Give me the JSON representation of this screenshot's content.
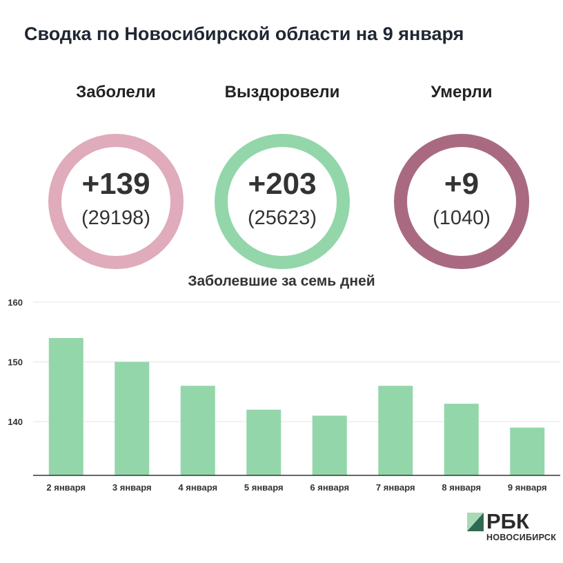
{
  "title": "Сводка по Новосибирской области на 9 января",
  "stats": [
    {
      "label": "Заболели",
      "delta": "+139",
      "total": "(29198)",
      "color": "#e0abbb"
    },
    {
      "label": "Выздоровели",
      "delta": "+203",
      "total": "(25623)",
      "color": "#93d6aa"
    },
    {
      "label": "Умерли",
      "delta": "+9",
      "total": "(1040)",
      "color": "#a96a81"
    }
  ],
  "chart_data": {
    "type": "bar",
    "title": "Заболевшие за семь дней",
    "categories": [
      "2 января",
      "3 января",
      "4 января",
      "5 января",
      "6 января",
      "7 января",
      "8 января",
      "9 января"
    ],
    "values": [
      154,
      150,
      146,
      142,
      141,
      146,
      143,
      139
    ],
    "ylim": [
      131,
      160
    ],
    "yticks": [
      140,
      150,
      160
    ],
    "grid": true,
    "bar_color": "#93d6aa"
  },
  "logo": {
    "brand": "РБК",
    "city": "НОВОСИБИРСК",
    "colors": [
      "#a9d9b6",
      "#2f6b52"
    ]
  }
}
